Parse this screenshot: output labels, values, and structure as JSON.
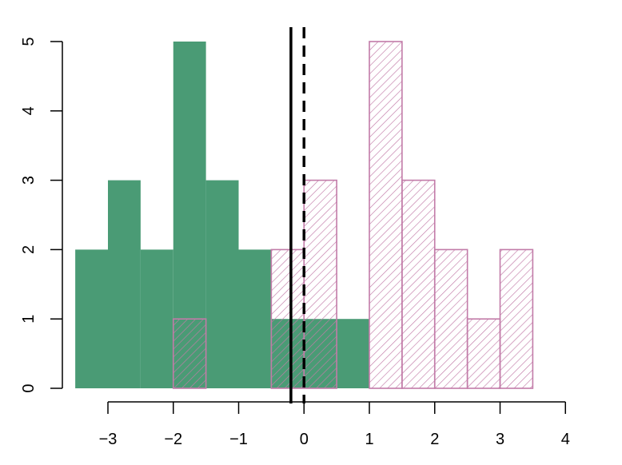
{
  "chart_data": {
    "type": "histogram",
    "title": "",
    "xlabel": "",
    "ylabel": "",
    "xlim": [
      -3.5,
      4
    ],
    "ylim": [
      0,
      5
    ],
    "x_ticks": [
      -3,
      -2,
      -1,
      0,
      1,
      2,
      3,
      4
    ],
    "x_tick_labels": [
      "−3",
      "−2",
      "−1",
      "0",
      "1",
      "2",
      "3",
      "4"
    ],
    "y_ticks": [
      0,
      1,
      2,
      3,
      4,
      5
    ],
    "y_tick_labels": [
      "0",
      "1",
      "2",
      "3",
      "4",
      "5"
    ],
    "bin_width": 0.5,
    "series": [
      {
        "style": "solid",
        "color": "#4a9b75",
        "bin_starts": [
          -3.5,
          -3.0,
          -2.5,
          -2.0,
          -1.5,
          -1.0,
          -0.5,
          0.0,
          0.5
        ],
        "counts": [
          2,
          3,
          2,
          5,
          3,
          2,
          1,
          1,
          1
        ]
      },
      {
        "style": "hatched",
        "color": "#c27ba8",
        "bin_starts": [
          -2.0,
          -0.5,
          0.0,
          1.0,
          1.5,
          2.0,
          2.5,
          3.0
        ],
        "counts": [
          1,
          2,
          3,
          5,
          3,
          2,
          1,
          2
        ]
      }
    ],
    "vlines": [
      {
        "x": -0.2,
        "style": "solid",
        "color": "#000000"
      },
      {
        "x": 0.0,
        "style": "dashed",
        "color": "#000000"
      }
    ]
  }
}
